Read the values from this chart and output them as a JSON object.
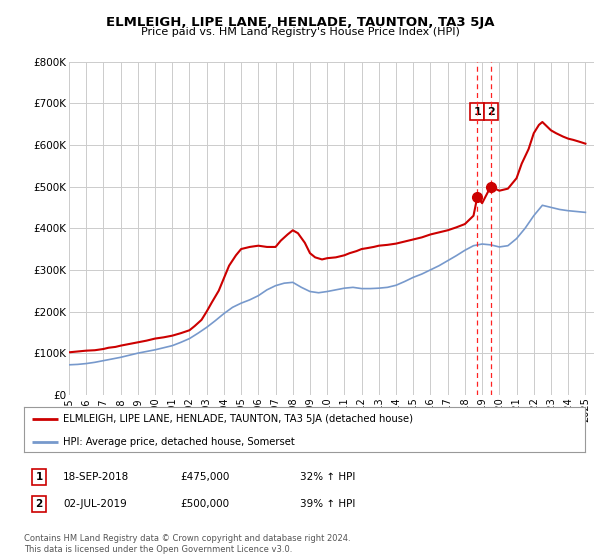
{
  "title": "ELMLEIGH, LIPE LANE, HENLADE, TAUNTON, TA3 5JA",
  "subtitle": "Price paid vs. HM Land Registry's House Price Index (HPI)",
  "title_fontsize": 9.5,
  "subtitle_fontsize": 8.0,
  "background_color": "#ffffff",
  "plot_bg_color": "#ffffff",
  "grid_color": "#cccccc",
  "ylim": [
    0,
    800000
  ],
  "yticks": [
    0,
    100000,
    200000,
    300000,
    400000,
    500000,
    600000,
    700000,
    800000
  ],
  "ytick_labels": [
    "£0",
    "£100K",
    "£200K",
    "£300K",
    "£400K",
    "£500K",
    "£600K",
    "£700K",
    "£800K"
  ],
  "xlim_start": 1995.0,
  "xlim_end": 2025.5,
  "xticks": [
    1995,
    1996,
    1997,
    1998,
    1999,
    2000,
    2001,
    2002,
    2003,
    2004,
    2005,
    2006,
    2007,
    2008,
    2009,
    2010,
    2011,
    2012,
    2013,
    2014,
    2015,
    2016,
    2017,
    2018,
    2019,
    2020,
    2021,
    2022,
    2023,
    2024,
    2025
  ],
  "red_line_color": "#cc0000",
  "blue_line_color": "#7799cc",
  "marker_color": "#cc0000",
  "vline_color": "#ff2222",
  "sale1_x": 2018.72,
  "sale2_x": 2019.5,
  "sale1_y": 475000,
  "sale2_y": 500000,
  "legend_red_label": "ELMLEIGH, LIPE LANE, HENLADE, TAUNTON, TA3 5JA (detached house)",
  "legend_blue_label": "HPI: Average price, detached house, Somerset",
  "annotation1_date": "18-SEP-2018",
  "annotation1_price": "£475,000",
  "annotation1_hpi": "32% ↑ HPI",
  "annotation2_date": "02-JUL-2019",
  "annotation2_price": "£500,000",
  "annotation2_hpi": "39% ↑ HPI",
  "footer1": "Contains HM Land Registry data © Crown copyright and database right 2024.",
  "footer2": "This data is licensed under the Open Government Licence v3.0.",
  "red_x": [
    1995.0,
    1995.5,
    1996.0,
    1996.5,
    1997.0,
    1997.3,
    1997.7,
    1998.0,
    1998.5,
    1999.0,
    1999.5,
    2000.0,
    2000.5,
    2001.0,
    2001.5,
    2002.0,
    2002.3,
    2002.7,
    2003.0,
    2003.3,
    2003.7,
    2004.0,
    2004.3,
    2004.7,
    2005.0,
    2005.5,
    2006.0,
    2006.5,
    2007.0,
    2007.3,
    2007.7,
    2008.0,
    2008.3,
    2008.7,
    2009.0,
    2009.3,
    2009.7,
    2010.0,
    2010.5,
    2011.0,
    2011.3,
    2011.7,
    2012.0,
    2012.3,
    2012.7,
    2013.0,
    2013.5,
    2014.0,
    2014.5,
    2015.0,
    2015.5,
    2016.0,
    2016.5,
    2017.0,
    2017.5,
    2018.0,
    2018.5,
    2018.72,
    2019.0,
    2019.5,
    2020.0,
    2020.5,
    2021.0,
    2021.3,
    2021.7,
    2022.0,
    2022.3,
    2022.5,
    2022.8,
    2023.0,
    2023.3,
    2023.7,
    2024.0,
    2024.3,
    2024.7,
    2025.0
  ],
  "red_y": [
    102000,
    104000,
    106000,
    107000,
    110000,
    113000,
    115000,
    118000,
    122000,
    126000,
    130000,
    135000,
    138000,
    142000,
    148000,
    155000,
    165000,
    180000,
    200000,
    222000,
    250000,
    280000,
    310000,
    335000,
    350000,
    355000,
    358000,
    355000,
    355000,
    370000,
    385000,
    395000,
    388000,
    365000,
    340000,
    330000,
    325000,
    328000,
    330000,
    335000,
    340000,
    345000,
    350000,
    352000,
    355000,
    358000,
    360000,
    363000,
    368000,
    373000,
    378000,
    385000,
    390000,
    395000,
    402000,
    410000,
    430000,
    475000,
    460000,
    500000,
    490000,
    495000,
    520000,
    555000,
    590000,
    628000,
    648000,
    655000,
    643000,
    635000,
    628000,
    620000,
    615000,
    612000,
    607000,
    603000
  ],
  "blue_x": [
    1995.0,
    1995.5,
    1996.0,
    1996.5,
    1997.0,
    1997.5,
    1998.0,
    1998.5,
    1999.0,
    1999.5,
    2000.0,
    2000.5,
    2001.0,
    2001.5,
    2002.0,
    2002.5,
    2003.0,
    2003.5,
    2004.0,
    2004.5,
    2005.0,
    2005.5,
    2006.0,
    2006.5,
    2007.0,
    2007.5,
    2008.0,
    2008.5,
    2009.0,
    2009.5,
    2010.0,
    2010.5,
    2011.0,
    2011.5,
    2012.0,
    2012.5,
    2013.0,
    2013.5,
    2014.0,
    2014.5,
    2015.0,
    2015.5,
    2016.0,
    2016.5,
    2017.0,
    2017.5,
    2018.0,
    2018.5,
    2019.0,
    2019.5,
    2020.0,
    2020.5,
    2021.0,
    2021.5,
    2022.0,
    2022.5,
    2023.0,
    2023.5,
    2024.0,
    2024.5,
    2025.0
  ],
  "blue_y": [
    72000,
    73000,
    75000,
    78000,
    82000,
    86000,
    90000,
    95000,
    100000,
    104000,
    108000,
    113000,
    118000,
    126000,
    135000,
    148000,
    162000,
    178000,
    195000,
    210000,
    220000,
    228000,
    238000,
    252000,
    262000,
    268000,
    270000,
    258000,
    248000,
    245000,
    248000,
    252000,
    256000,
    258000,
    255000,
    255000,
    256000,
    258000,
    263000,
    272000,
    282000,
    290000,
    300000,
    310000,
    322000,
    334000,
    347000,
    358000,
    362000,
    360000,
    355000,
    358000,
    375000,
    400000,
    430000,
    455000,
    450000,
    445000,
    442000,
    440000,
    438000
  ]
}
